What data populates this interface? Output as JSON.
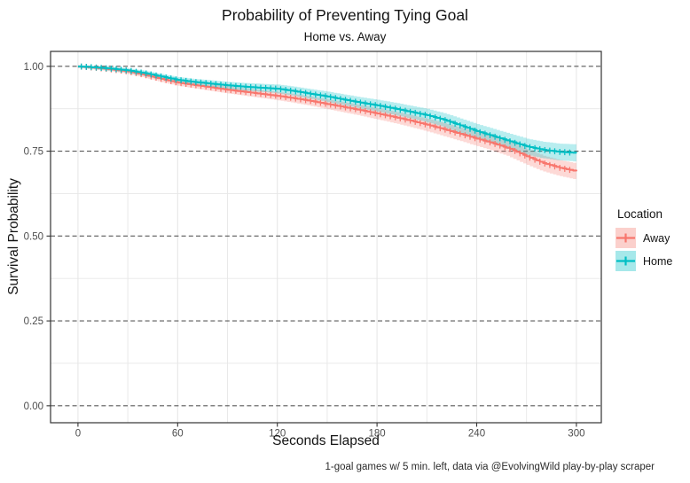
{
  "chart_data": {
    "type": "line",
    "variant": "kaplan-meier-survival-step",
    "title": "Probability of Preventing Tying Goal",
    "subtitle": "Home vs. Away",
    "xlabel": "Seconds Elapsed",
    "ylabel": "Survival Probability",
    "caption": "1-goal games w/ 5 min. left, data via @EvolvingWild play-by-play scraper",
    "xlim": [
      -16.5,
      315
    ],
    "ylim": [
      -0.05,
      1.044
    ],
    "x_ticks": [
      0,
      60,
      120,
      180,
      240,
      300
    ],
    "x_tick_labels": [
      "0",
      "60",
      "120",
      "180",
      "240",
      "300"
    ],
    "y_ticks": [
      0,
      0.25,
      0.5,
      0.75,
      1
    ],
    "y_tick_labels": [
      "0.00",
      "0.25",
      "0.50",
      "0.75",
      "1.00"
    ],
    "x_minor_step": 30,
    "y_minor_positions": [
      0.125,
      0.375,
      0.625,
      0.875
    ],
    "grid": {
      "minor_color": "#E7E7E7",
      "major_dashed_color": "#595959",
      "panel_border_color": "#333333",
      "tick_color": "#333333",
      "tick_label_color": "#4D4D4D",
      "major_style": "dashed-horizontal",
      "legend_position": "right"
    },
    "legend": {
      "title": "Location"
    },
    "series": [
      {
        "name": "Away",
        "color": "#F8766D",
        "key_fill": "#FBD0CC",
        "ci_half_width": [
          0.004,
          0.023
        ],
        "x": [
          0,
          10,
          20,
          30,
          40,
          50,
          60,
          70,
          80,
          90,
          100,
          110,
          120,
          130,
          140,
          150,
          160,
          170,
          180,
          190,
          200,
          210,
          220,
          230,
          240,
          250,
          260,
          270,
          280,
          290,
          300
        ],
        "y": [
          1.0,
          0.996,
          0.991,
          0.985,
          0.975,
          0.963,
          0.952,
          0.945,
          0.938,
          0.931,
          0.925,
          0.919,
          0.913,
          0.906,
          0.898,
          0.889,
          0.88,
          0.871,
          0.861,
          0.851,
          0.84,
          0.828,
          0.815,
          0.801,
          0.787,
          0.773,
          0.757,
          0.735,
          0.715,
          0.701,
          0.691
        ]
      },
      {
        "name": "Home",
        "color": "#00BFC4",
        "key_fill": "#A6E8EA",
        "ci_half_width": [
          0.004,
          0.025
        ],
        "x": [
          0,
          10,
          20,
          30,
          40,
          50,
          60,
          70,
          80,
          90,
          100,
          110,
          120,
          130,
          140,
          150,
          160,
          170,
          180,
          190,
          200,
          210,
          220,
          230,
          240,
          250,
          260,
          270,
          280,
          290,
          300
        ],
        "y": [
          1.0,
          0.997,
          0.993,
          0.988,
          0.98,
          0.97,
          0.96,
          0.954,
          0.949,
          0.944,
          0.94,
          0.937,
          0.934,
          0.927,
          0.919,
          0.911,
          0.902,
          0.893,
          0.885,
          0.876,
          0.866,
          0.856,
          0.843,
          0.826,
          0.809,
          0.794,
          0.779,
          0.764,
          0.754,
          0.748,
          0.745
        ]
      }
    ]
  }
}
